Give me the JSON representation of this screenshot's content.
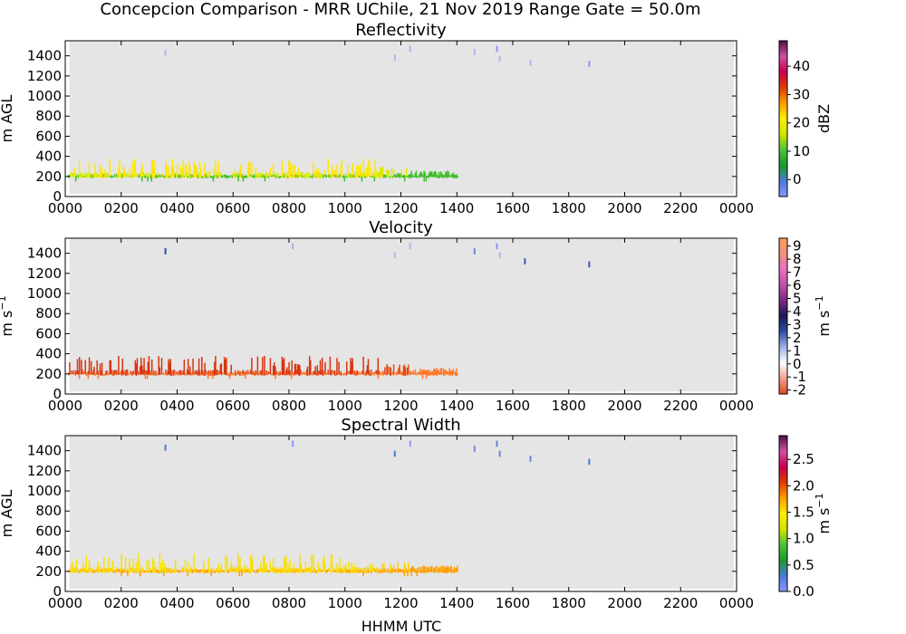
{
  "figure": {
    "suptitle": "Concepcion Comparison - MRR UChile, 21 Nov 2019 Range Gate = 50.0m",
    "xlabel": "HHMM UTC"
  },
  "chart_data": [
    {
      "type": "heatmap",
      "title": "Reflectivity",
      "ylabel": "m AGL",
      "xtick_labels": [
        "0000",
        "0200",
        "0400",
        "0600",
        "0800",
        "1000",
        "1200",
        "1400",
        "1600",
        "1800",
        "2000",
        "2200",
        "0000"
      ],
      "ytick_labels": [
        "0",
        "200",
        "400",
        "600",
        "800",
        "1000",
        "1200",
        "1400"
      ],
      "xlim_hours": [
        0,
        24
      ],
      "ylim_m": [
        0,
        1550
      ],
      "colorbar": {
        "label": "dBZ",
        "range": [
          -6,
          49
        ],
        "ticks": [
          "0",
          "10",
          "20",
          "30",
          "40"
        ],
        "tick_values": [
          0,
          10,
          20,
          30,
          40
        ],
        "stops": [
          "#8c96ff",
          "#4a7ad8",
          "#1a9a2a",
          "#4cc23a",
          "#d2e400",
          "#ffef00",
          "#ff9c00",
          "#e03a00",
          "#c8004a",
          "#d04fa8",
          "#4a1040"
        ]
      },
      "band": {
        "start_hour": 0.0,
        "end_hour": 14.0,
        "low_color": "#3fbf2a",
        "high_color": "#d8ea00",
        "tall_color": "#ffe600"
      },
      "sparse_returns": [
        {
          "hour": 3.55,
          "height_m": 1430,
          "color": "#aab8f0"
        },
        {
          "hour": 11.75,
          "height_m": 1380,
          "color": "#aab8f0"
        },
        {
          "hour": 12.3,
          "height_m": 1470,
          "color": "#aab8f0"
        },
        {
          "hour": 14.6,
          "height_m": 1440,
          "color": "#aab8f0"
        },
        {
          "hour": 15.4,
          "height_m": 1470,
          "color": "#8c96ff"
        },
        {
          "hour": 15.5,
          "height_m": 1370,
          "color": "#aab8f0"
        },
        {
          "hour": 16.6,
          "height_m": 1330,
          "color": "#aab8f0"
        },
        {
          "hour": 18.7,
          "height_m": 1320,
          "color": "#8c96ff"
        }
      ]
    },
    {
      "type": "heatmap",
      "title": "Velocity",
      "ylabel": "m s",
      "ylabel_sup": "−1",
      "xtick_labels": [
        "0000",
        "0200",
        "0400",
        "0600",
        "0800",
        "1000",
        "1200",
        "1400",
        "1600",
        "1800",
        "2000",
        "2200",
        "0000"
      ],
      "ytick_labels": [
        "0",
        "200",
        "400",
        "600",
        "800",
        "1000",
        "1200",
        "1400"
      ],
      "xlim_hours": [
        0,
        24
      ],
      "ylim_m": [
        0,
        1550
      ],
      "colorbar": {
        "label": "m s",
        "label_sup": "−1",
        "range": [
          -2.3,
          9.6
        ],
        "ticks": [
          "-2",
          "-1",
          "0",
          "1",
          "2",
          "3",
          "4",
          "5",
          "6",
          "7",
          "8",
          "9"
        ],
        "tick_values": [
          -2,
          -1,
          0,
          1,
          2,
          3,
          4,
          5,
          6,
          7,
          8,
          9
        ],
        "stops": [
          "#e2491e",
          "#f0a090",
          "#ffffff",
          "#9fb3e8",
          "#2c4ea4",
          "#1a1a50",
          "#7a2a80",
          "#c050a8",
          "#e870c0",
          "#f09080",
          "#ff9f55"
        ]
      },
      "band": {
        "start_hour": 0.0,
        "end_hour": 14.0,
        "low_color": "#ff7a2a",
        "high_color": "#e2491e",
        "tall_color": "#d83410"
      },
      "sparse_returns": [
        {
          "hour": 3.55,
          "height_m": 1420,
          "color": "#2c4ea4"
        },
        {
          "hour": 8.1,
          "height_m": 1470,
          "color": "#9fb3e8"
        },
        {
          "hour": 11.75,
          "height_m": 1380,
          "color": "#aab8f0"
        },
        {
          "hour": 12.3,
          "height_m": 1470,
          "color": "#aab8f0"
        },
        {
          "hour": 14.6,
          "height_m": 1420,
          "color": "#6d84d4"
        },
        {
          "hour": 15.4,
          "height_m": 1470,
          "color": "#8c96ff"
        },
        {
          "hour": 15.5,
          "height_m": 1380,
          "color": "#aab8f0"
        },
        {
          "hour": 16.4,
          "height_m": 1320,
          "color": "#3a5ab8"
        },
        {
          "hour": 18.7,
          "height_m": 1290,
          "color": "#3a5ab8"
        }
      ]
    },
    {
      "type": "heatmap",
      "title": "Spectral Width",
      "ylabel": "m AGL",
      "xtick_labels": [
        "0000",
        "0200",
        "0400",
        "0600",
        "0800",
        "1000",
        "1200",
        "1400",
        "1600",
        "1800",
        "2000",
        "2200",
        "0000"
      ],
      "ytick_labels": [
        "0",
        "200",
        "400",
        "600",
        "800",
        "1000",
        "1200",
        "1400"
      ],
      "xlim_hours": [
        0,
        24
      ],
      "ylim_m": [
        0,
        1550
      ],
      "colorbar": {
        "label": "m s",
        "label_sup": "−1",
        "range": [
          0.0,
          2.95
        ],
        "ticks": [
          "0.0",
          "0.5",
          "1.0",
          "1.5",
          "2.0",
          "2.5"
        ],
        "tick_values": [
          0.0,
          0.5,
          1.0,
          1.5,
          2.0,
          2.5
        ],
        "stops": [
          "#8c96ff",
          "#4a7ad8",
          "#1a9a2a",
          "#4cc23a",
          "#d2e400",
          "#ffef00",
          "#ff9c00",
          "#e03a00",
          "#c8004a",
          "#d04fa8",
          "#4a1040"
        ]
      },
      "band": {
        "start_hour": 0.0,
        "end_hour": 14.0,
        "low_color": "#ffa000",
        "high_color": "#ffd200",
        "tall_color": "#f7e200"
      },
      "sparse_returns": [
        {
          "hour": 3.55,
          "height_m": 1430,
          "color": "#4a7ad8"
        },
        {
          "hour": 8.1,
          "height_m": 1470,
          "color": "#8c96ff"
        },
        {
          "hour": 11.75,
          "height_m": 1370,
          "color": "#4a7ad8"
        },
        {
          "hour": 12.3,
          "height_m": 1470,
          "color": "#8c96ff"
        },
        {
          "hour": 14.6,
          "height_m": 1420,
          "color": "#6d84d4"
        },
        {
          "hour": 15.4,
          "height_m": 1470,
          "color": "#6d84d4"
        },
        {
          "hour": 15.5,
          "height_m": 1370,
          "color": "#6d84d4"
        },
        {
          "hour": 16.6,
          "height_m": 1320,
          "color": "#6d84d4"
        },
        {
          "hour": 18.7,
          "height_m": 1290,
          "color": "#4a7ad8"
        }
      ]
    }
  ]
}
